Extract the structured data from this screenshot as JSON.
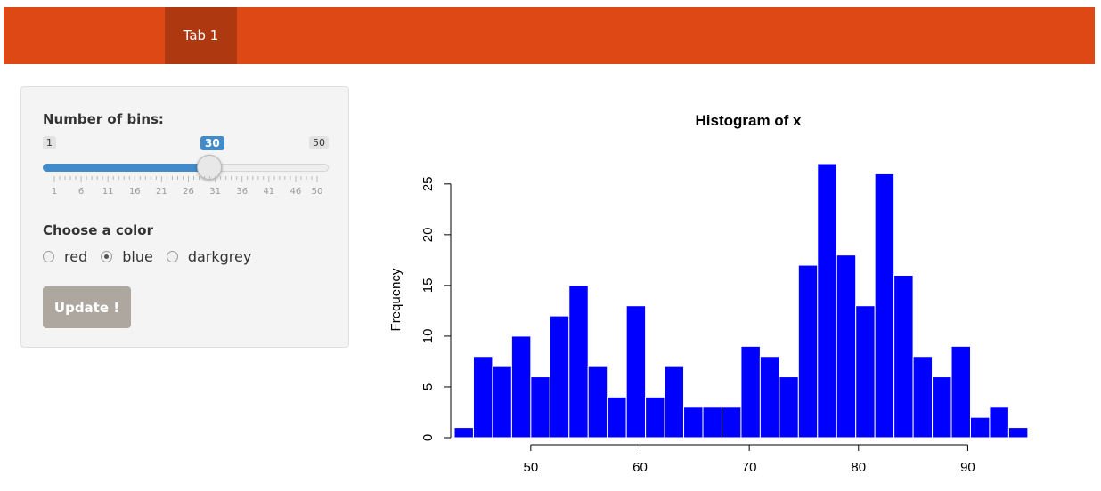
{
  "navbar": {
    "tabs": [
      {
        "label": "Tab 1",
        "active": true
      }
    ]
  },
  "sidebar": {
    "bins_label": "Number of bins:",
    "slider": {
      "min": 1,
      "max": 50,
      "value": 30,
      "min_label": "1",
      "max_label": "50",
      "value_label": "30",
      "tick_labels": [
        "1",
        "6",
        "11",
        "16",
        "21",
        "26",
        "31",
        "36",
        "41",
        "46",
        "50"
      ]
    },
    "color_label": "Choose a color",
    "color_options": [
      "red",
      "blue",
      "darkgrey"
    ],
    "selected_color": "blue",
    "update_button": "Update !"
  },
  "colors": {
    "navbar": "#dd4814",
    "active_tab": "#ae3910",
    "slider_fill": "#428bca",
    "bar_fill": "#0000ff",
    "button": "#aea79f"
  },
  "chart_data": {
    "type": "bar",
    "title": "Histogram of x",
    "xlabel": "",
    "ylabel": "Frequency",
    "bin_start": 43,
    "bin_width": 1.75,
    "values": [
      1,
      8,
      7,
      10,
      6,
      12,
      15,
      7,
      4,
      13,
      4,
      7,
      3,
      3,
      3,
      9,
      8,
      6,
      17,
      27,
      18,
      13,
      26,
      16,
      8,
      6,
      9,
      2,
      3,
      1
    ],
    "xlim": [
      43,
      96
    ],
    "ylim": [
      0,
      27
    ],
    "xticks": [
      50,
      60,
      70,
      80,
      90
    ],
    "yticks": [
      0,
      5,
      10,
      15,
      20,
      25
    ],
    "grid": false
  }
}
